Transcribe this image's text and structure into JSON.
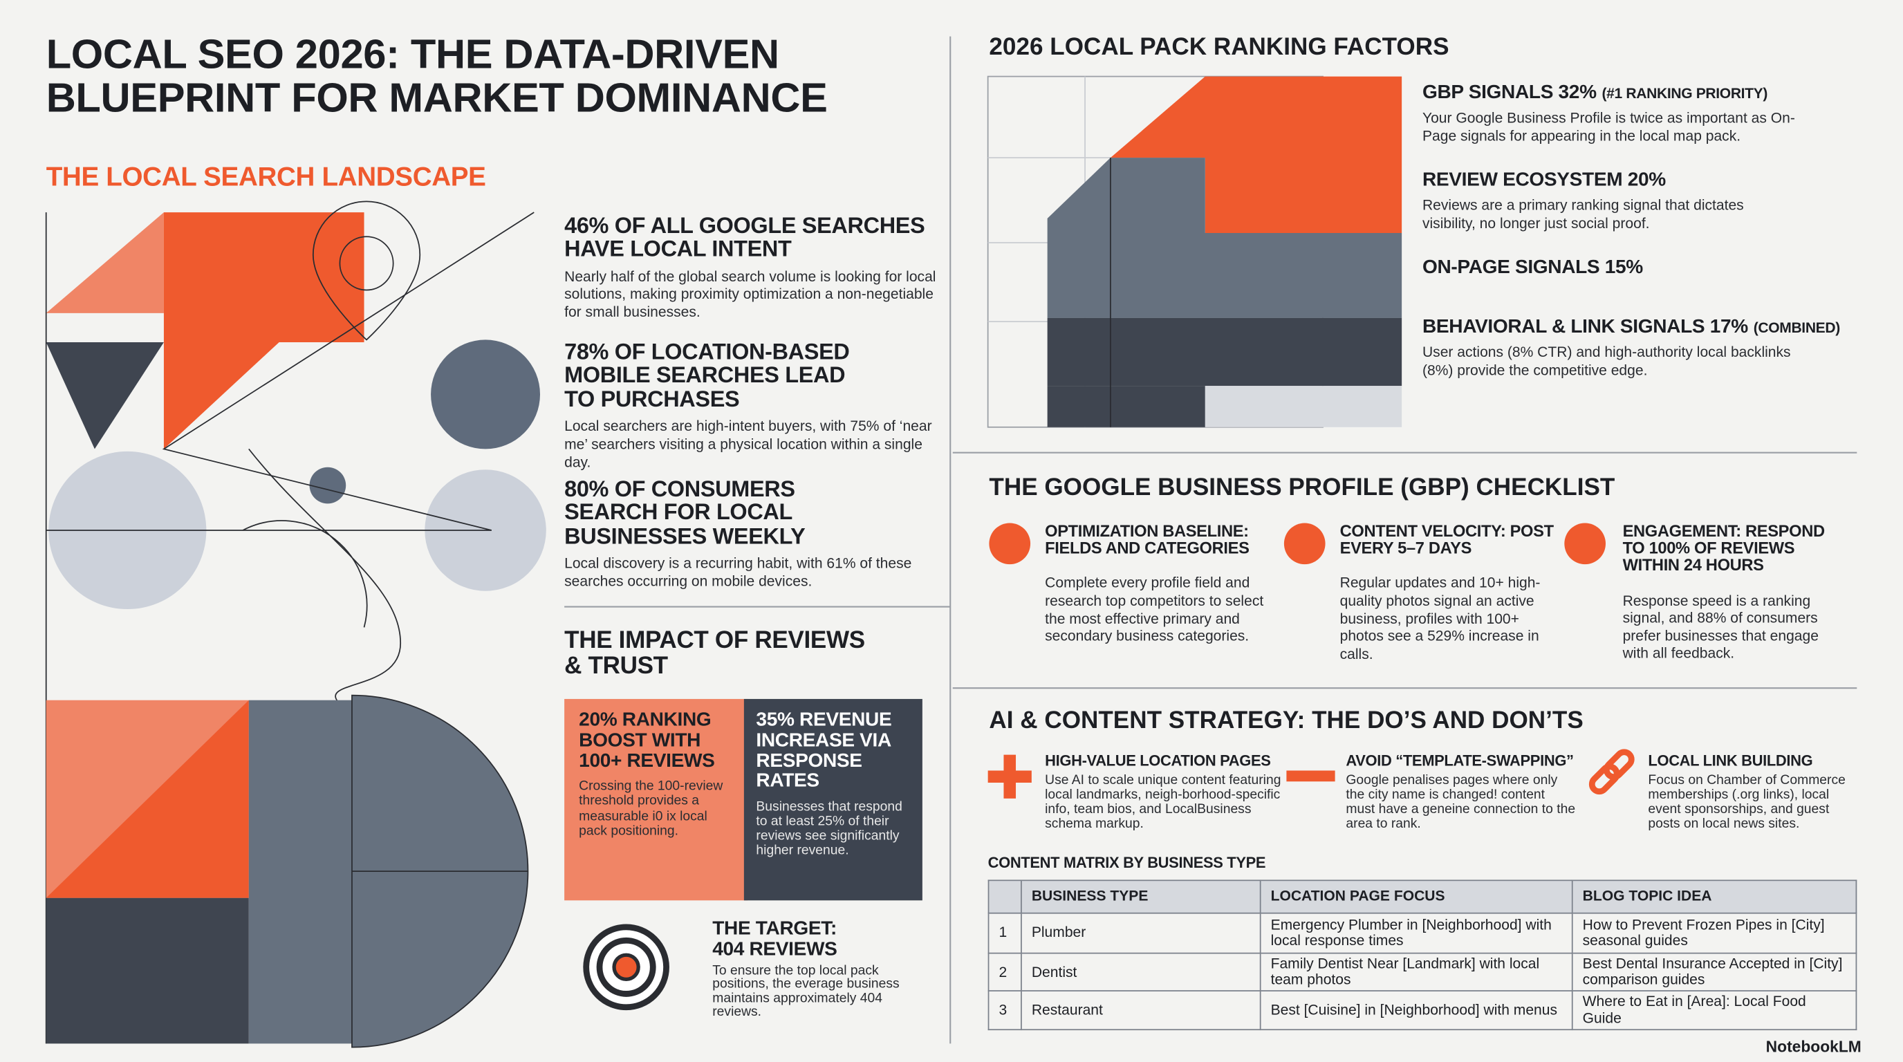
{
  "title": "LOCAL SEO 2026: THE DATA-DRIVEN BLUEPRINT FOR MARKET DOMINANCE",
  "landscape": {
    "heading": "THE LOCAL SEARCH LANDSCAPE",
    "stats": [
      {
        "headline": "46% OF ALL GOOGLE SEARCHES HAVE LOCAL INTENT",
        "text": "Nearly half of the global search volume is looking for local solutions, making proximity optimization a non-negetiable for small businesses."
      },
      {
        "headline": "78% OF LOCATION-BASED MOBILE SEARCHES LEAD TO PURCHASES",
        "text": "Local searchers are high-intent buyers, with 75% of ‘near me’ searchers visiting a physical location within a single day."
      },
      {
        "headline": "80% OF CONSUMERS SEARCH FOR LOCAL BUSINESSES WEEKLY",
        "text": "Local discovery is a recurring habit, with 61% of these searches occurring on mobile devices."
      }
    ]
  },
  "reviews": {
    "heading": "THE IMPACT OF REVIEWS & TRUST",
    "cards": [
      {
        "headline": "20% RANKING BOOST WITH 100+ REVIEWS",
        "text": "Crossing the 100-review threshold provides a measurable i0 ix local pack positioning."
      },
      {
        "headline": "35% REVENUE INCREASE VIA RESPONSE RATES",
        "text": "Businesses that respond to at least 25% of their reviews see significantly higher revenue."
      }
    ],
    "target": {
      "headline": "THE TARGET: 404 REVIEWS",
      "text": "To ensure the top local pack positions, the everage business maintains approximately 404 reviews."
    }
  },
  "ranking_factors": {
    "heading": "2026 LOCAL PACK RANKING FACTORS",
    "factors": [
      {
        "name": "GBP SIGNALS 32%",
        "note": "(#1 RANKING PRIORITY)",
        "text": "Your Google Business Profile is twice as important as On-Page signals for appearing in the local map pack."
      },
      {
        "name": "REVIEW ECOSYSTEM 20%",
        "text": "Reviews are a primary ranking signal that dictates visibility, no longer just social proof."
      },
      {
        "name": "ON-PAGE SIGNALS 15%"
      },
      {
        "name": "BEHAVIORAL & LINK SIGNALS 17%",
        "note": "(COMBINED)",
        "text": "User actions (8% CTR) and high-authority local backlinks (8%) provide the competitive edge."
      }
    ]
  },
  "gbp_checklist": {
    "heading": "THE GOOGLE BUSINESS PROFILE (GBP) CHECKLIST",
    "items": [
      {
        "headline": "OPTIMIZATION BASELINE: FIELDS AND CATEGORIES",
        "text": "Complete every profile field and research top competitors to select the most effective primary and secondary business categories."
      },
      {
        "headline": "CONTENT VELOCITY: POST EVERY 5–7 DAYS",
        "text": "Regular updates and 10+ high-quality photos signal an active business, profiles with 100+ photos see a 529% increase in calls."
      },
      {
        "headline": "ENGAGEMENT: RESPOND TO 100% OF REVIEWS WITHIN 24 HOURS",
        "text": "Response speed is a ranking signal, and 88% of consumers prefer businesses that engage with all feedback."
      }
    ]
  },
  "ai_strategy": {
    "heading": "AI & CONTENT STRATEGY: THE DO’S AND DON’TS",
    "items": [
      {
        "headline": "HIGH-VALUE LOCATION PAGES",
        "text": "Use AI to scale unique content featuring local landmarks, neigh-borhood-specific info, team bios, and LocalBusiness schema markup."
      },
      {
        "headline": "AVOID “TEMPLATE-SWAPPING”",
        "text": "Google penalises pages where only the city name is changed! content must have a geneine connection to the area to rank."
      },
      {
        "headline": "LOCAL LINK BUILDING",
        "text": "Focus on Chamber of Commerce memberships (.org links), local event sponsorships, and guest posts on local news sites."
      }
    ],
    "matrix": {
      "title": "CONTENT MATRIX BY BUSINESS TYPE",
      "columns": [
        "BUSINESS TYPE",
        "LOCATION PAGE FOCUS",
        "BLOG TOPIC IDEA"
      ],
      "rows": [
        [
          "1",
          "Plumber",
          "Emergency Plumber in [Neighborhood] with local response times",
          "How to Prevent Frozen Pipes in [City] seasonal guides"
        ],
        [
          "2",
          "Dentist",
          "Family Dentist Near [Landmark] with local team photos",
          "Best Dental Insurance Accepted in [City] comparison guides"
        ],
        [
          "3",
          "Restaurant",
          "Best [Cuisine] in [Neighborhood] with menus",
          "Where to Eat in [Area]: Local Food Guide"
        ]
      ]
    }
  },
  "footer": "NotebookLM"
}
